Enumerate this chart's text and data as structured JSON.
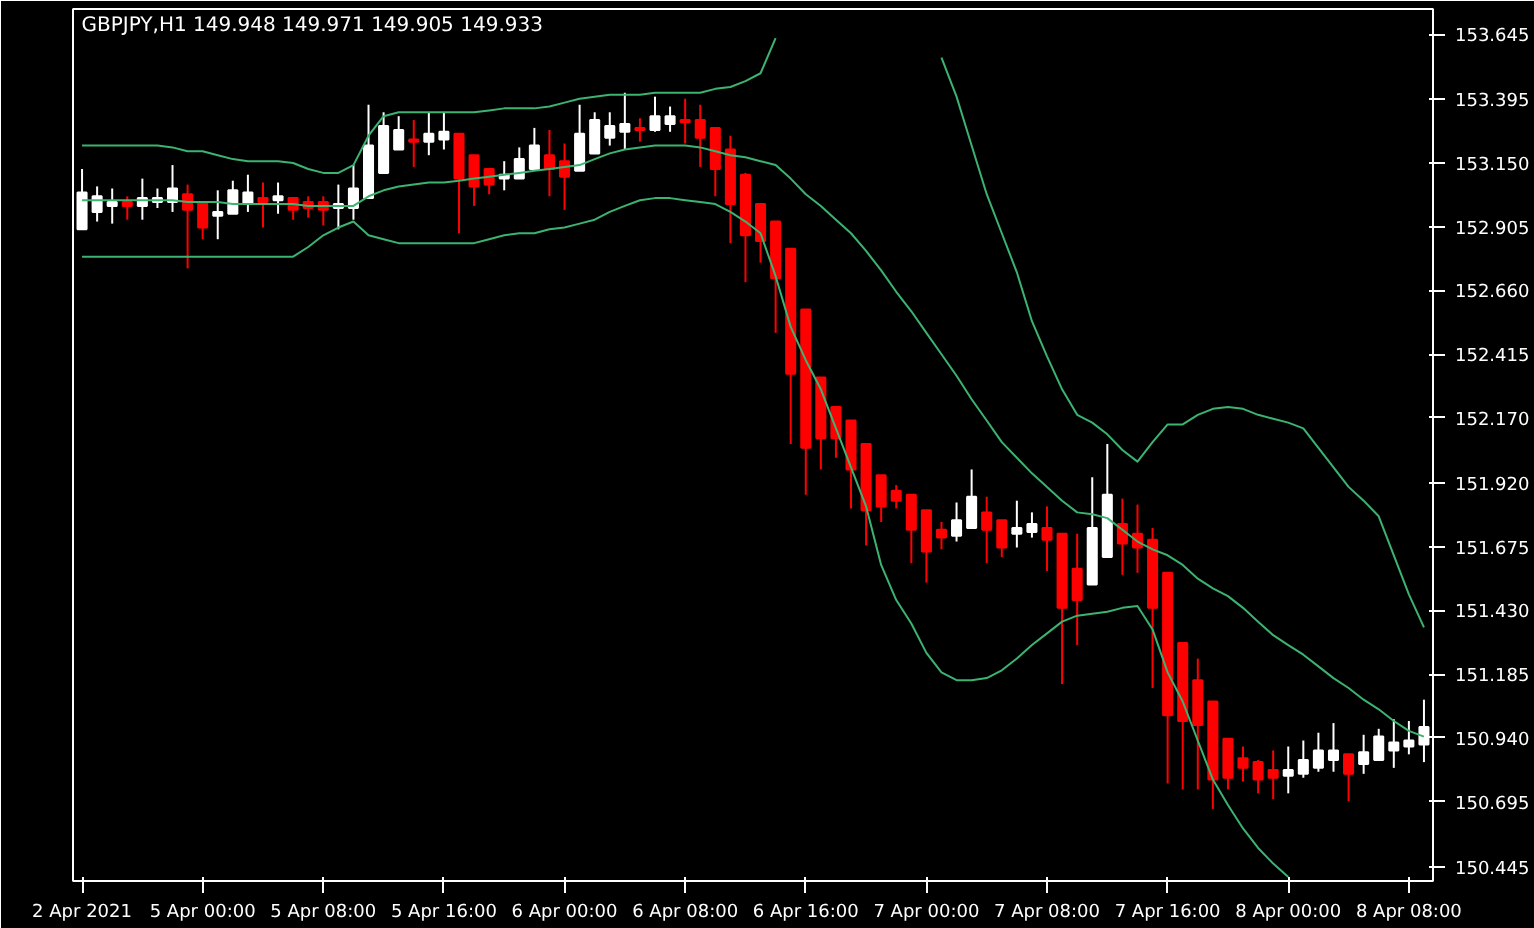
{
  "chart_data": {
    "type": "candlestick",
    "title": "GBPJPY,H1  149.948 149.971 149.905 149.933",
    "categories": [
      "2 Apr 2021",
      null,
      null,
      null,
      null,
      null,
      null,
      null,
      "5 Apr 00:00",
      null,
      null,
      null,
      null,
      null,
      null,
      null,
      "5 Apr 08:00",
      null,
      null,
      null,
      null,
      null,
      null,
      null,
      "5 Apr 16:00",
      null,
      null,
      null,
      null,
      null,
      null,
      null,
      "6 Apr 00:00",
      null,
      null,
      null,
      null,
      null,
      null,
      null,
      "6 Apr 08:00",
      null,
      null,
      null,
      null,
      null,
      null,
      null,
      "6 Apr 16:00",
      null,
      null,
      null,
      null,
      null,
      null,
      null,
      "7 Apr 00:00",
      null,
      null,
      null,
      null,
      null,
      null,
      null,
      "7 Apr 08:00",
      null,
      null,
      null,
      null,
      null,
      null,
      null,
      "7 Apr 16:00",
      null,
      null,
      null,
      null,
      null,
      null,
      null,
      "8 Apr 00:00",
      null,
      null,
      null,
      null,
      null,
      null,
      null,
      "8 Apr 08:00",
      null
    ],
    "ohlc": [
      [
        152.895,
        153.127,
        152.895,
        153.037
      ],
      [
        152.962,
        153.06,
        152.925,
        153.022
      ],
      [
        152.985,
        153.052,
        152.917,
        153.0
      ],
      [
        153.0,
        153.022,
        152.932,
        152.985
      ],
      [
        152.985,
        153.09,
        152.932,
        153.015
      ],
      [
        153.0,
        153.052,
        152.977,
        153.015
      ],
      [
        153.0,
        153.142,
        152.962,
        153.052
      ],
      [
        153.03,
        153.067,
        152.745,
        152.97
      ],
      [
        153.0,
        153.0,
        152.857,
        152.902
      ],
      [
        152.947,
        153.045,
        152.857,
        152.962
      ],
      [
        152.955,
        153.082,
        152.955,
        153.045
      ],
      [
        152.992,
        153.105,
        152.962,
        153.037
      ],
      [
        153.015,
        153.075,
        152.902,
        153.0
      ],
      [
        153.007,
        153.075,
        152.955,
        153.022
      ],
      [
        153.015,
        153.015,
        152.932,
        152.97
      ],
      [
        153.0,
        153.022,
        152.94,
        152.977
      ],
      [
        153.0,
        153.022,
        152.91,
        152.97
      ],
      [
        152.977,
        153.067,
        152.895,
        152.992
      ],
      [
        152.977,
        153.142,
        152.932,
        153.052
      ],
      [
        153.015,
        153.374,
        153.015,
        153.217
      ],
      [
        153.112,
        153.345,
        153.112,
        153.292
      ],
      [
        153.202,
        153.33,
        153.202,
        153.277
      ],
      [
        153.24,
        153.315,
        153.135,
        153.232
      ],
      [
        153.232,
        153.345,
        153.18,
        153.262
      ],
      [
        153.24,
        153.345,
        153.202,
        153.27
      ],
      [
        153.262,
        153.262,
        152.88,
        153.09
      ],
      [
        153.18,
        153.18,
        152.985,
        153.06
      ],
      [
        153.127,
        153.127,
        153.03,
        153.067
      ],
      [
        153.09,
        153.157,
        153.045,
        153.105
      ],
      [
        153.09,
        153.21,
        153.09,
        153.165
      ],
      [
        153.127,
        153.285,
        153.127,
        153.217
      ],
      [
        153.18,
        153.277,
        153.022,
        153.127
      ],
      [
        153.157,
        153.225,
        152.97,
        153.097
      ],
      [
        153.12,
        153.374,
        153.12,
        153.262
      ],
      [
        153.187,
        153.345,
        153.187,
        153.315
      ],
      [
        153.247,
        153.345,
        153.217,
        153.292
      ],
      [
        153.27,
        153.42,
        153.202,
        153.3
      ],
      [
        153.285,
        153.322,
        153.232,
        153.277
      ],
      [
        153.277,
        153.405,
        153.27,
        153.33
      ],
      [
        153.3,
        153.367,
        153.27,
        153.33
      ],
      [
        153.315,
        153.397,
        153.225,
        153.307
      ],
      [
        153.315,
        153.374,
        153.135,
        153.247
      ],
      [
        153.285,
        153.285,
        153.022,
        153.127
      ],
      [
        153.202,
        153.255,
        152.842,
        152.992
      ],
      [
        153.105,
        153.112,
        152.692,
        152.872
      ],
      [
        152.992,
        152.992,
        152.767,
        152.85
      ],
      [
        152.925,
        152.925,
        152.497,
        152.707
      ],
      [
        152.82,
        152.82,
        152.07,
        152.34
      ],
      [
        152.587,
        152.587,
        151.875,
        152.055
      ],
      [
        152.325,
        152.325,
        151.972,
        152.092
      ],
      [
        152.212,
        152.212,
        152.017,
        152.092
      ],
      [
        152.16,
        152.16,
        151.822,
        151.972
      ],
      [
        152.07,
        152.07,
        151.68,
        151.815
      ],
      [
        151.95,
        151.95,
        151.77,
        151.83
      ],
      [
        151.89,
        151.912,
        151.822,
        151.852
      ],
      [
        151.875,
        151.875,
        151.612,
        151.74
      ],
      [
        151.815,
        151.815,
        151.537,
        151.657
      ],
      [
        151.74,
        151.77,
        151.665,
        151.71
      ],
      [
        151.717,
        151.845,
        151.695,
        151.777
      ],
      [
        151.747,
        151.972,
        151.747,
        151.867
      ],
      [
        151.807,
        151.867,
        151.612,
        151.74
      ],
      [
        151.777,
        151.777,
        151.635,
        151.672
      ],
      [
        151.725,
        151.852,
        151.672,
        151.747
      ],
      [
        151.732,
        151.807,
        151.71,
        151.762
      ],
      [
        151.747,
        151.83,
        151.582,
        151.702
      ],
      [
        151.725,
        151.725,
        151.147,
        151.44
      ],
      [
        151.59,
        151.725,
        151.297,
        151.47
      ],
      [
        151.53,
        151.942,
        151.53,
        151.747
      ],
      [
        151.635,
        152.07,
        151.635,
        151.875
      ],
      [
        151.762,
        151.86,
        151.567,
        151.687
      ],
      [
        151.725,
        151.837,
        151.575,
        151.672
      ],
      [
        151.702,
        151.747,
        151.132,
        151.44
      ],
      [
        151.575,
        151.575,
        150.765,
        151.027
      ],
      [
        151.305,
        151.305,
        150.742,
        151.005
      ],
      [
        151.162,
        151.245,
        150.742,
        150.99
      ],
      [
        151.08,
        151.08,
        150.667,
        150.78
      ],
      [
        150.937,
        150.937,
        150.742,
        150.787
      ],
      [
        150.862,
        150.907,
        150.772,
        150.825
      ],
      [
        150.847,
        150.855,
        150.727,
        150.78
      ],
      [
        150.817,
        150.892,
        150.705,
        150.787
      ],
      [
        150.795,
        150.907,
        150.727,
        150.817
      ],
      [
        150.802,
        150.93,
        150.787,
        150.855
      ],
      [
        150.825,
        150.96,
        150.81,
        150.892
      ],
      [
        150.855,
        150.997,
        150.81,
        150.892
      ],
      [
        150.877,
        150.877,
        150.697,
        150.802
      ],
      [
        150.84,
        150.952,
        150.802,
        150.885
      ],
      [
        150.855,
        150.975,
        150.855,
        150.945
      ],
      [
        150.892,
        151.012,
        150.825,
        150.922
      ],
      [
        150.907,
        151.005,
        150.877,
        150.93
      ],
      [
        150.915,
        151.087,
        150.847,
        150.982
      ]
    ],
    "colors": [
      "#ffffff",
      "#ffffff",
      "#ffffff",
      "#ff0000",
      "#ffffff",
      "#ffffff",
      "#ffffff",
      "#ff0000",
      "#ff0000",
      "#ffffff",
      "#ffffff",
      "#ffffff",
      "#ff0000",
      "#ffffff",
      "#ff0000",
      "#ff0000",
      "#ff0000",
      "#ffffff",
      "#ffffff",
      "#ffffff",
      "#ffffff",
      "#ffffff",
      "#ff0000",
      "#ffffff",
      "#ffffff",
      "#ff0000",
      "#ff0000",
      "#ff0000",
      "#ffffff",
      "#ffffff",
      "#ffffff",
      "#ff0000",
      "#ff0000",
      "#ffffff",
      "#ffffff",
      "#ffffff",
      "#ffffff",
      "#ff0000",
      "#ffffff",
      "#ffffff",
      "#ff0000",
      "#ff0000",
      "#ff0000",
      "#ff0000",
      "#ff0000",
      "#ff0000",
      "#ff0000",
      "#ff0000",
      "#ff0000",
      "#ff0000",
      "#ff0000",
      "#ff0000",
      "#ff0000",
      "#ff0000",
      "#ff0000",
      "#ff0000",
      "#ff0000",
      "#ff0000",
      "#ffffff",
      "#ffffff",
      "#ff0000",
      "#ff0000",
      "#ffffff",
      "#ffffff",
      "#ff0000",
      "#ff0000",
      "#ff0000",
      "#ffffff",
      "#ffffff",
      "#ff0000",
      "#ff0000",
      "#ff0000",
      "#ff0000",
      "#ff0000",
      "#ff0000",
      "#ff0000",
      "#ff0000",
      "#ff0000",
      "#ff0000",
      "#ff0000",
      "#ffffff",
      "#ffffff",
      "#ffffff",
      "#ffffff",
      "#ff0000",
      "#ffffff",
      "#ffffff",
      "#ffffff",
      "#ffffff",
      "#ffffff"
    ],
    "series": [
      {
        "type": "line",
        "color": "#3cb371",
        "values": [
          153.217,
          153.217,
          153.217,
          153.217,
          153.217,
          153.217,
          153.21,
          153.195,
          153.195,
          153.18,
          153.165,
          153.157,
          153.157,
          153.157,
          153.15,
          153.127,
          153.112,
          153.112,
          153.142,
          153.255,
          153.33,
          153.345,
          153.345,
          153.345,
          153.345,
          153.345,
          153.345,
          153.352,
          153.36,
          153.36,
          153.36,
          153.367,
          153.382,
          153.397,
          153.405,
          153.412,
          153.412,
          153.412,
          153.42,
          153.42,
          153.42,
          153.42,
          153.435,
          153.442,
          153.465,
          153.495,
          153.63,
          null,
          null,
          null,
          null,
          null,
          null,
          null,
          null,
          null,
          null,
          153.555,
          153.405,
          153.217,
          153.03,
          152.88,
          152.73,
          152.542,
          152.407,
          152.28,
          152.182,
          152.152,
          152.107,
          152.047,
          152.002,
          152.077,
          152.145,
          152.145,
          152.182,
          152.205,
          152.212,
          152.205,
          152.182,
          152.167,
          152.152,
          152.13,
          152.055,
          151.98,
          151.905,
          151.852,
          151.792,
          151.642,
          151.492,
          151.365
        ]
      },
      {
        "type": "line",
        "color": "#3cb371",
        "values": [
          153.007,
          153.007,
          153.007,
          153.007,
          153.007,
          153.007,
          153.007,
          153.0,
          153.0,
          153.0,
          152.992,
          152.992,
          152.992,
          152.992,
          152.992,
          152.985,
          152.985,
          152.985,
          152.985,
          153.022,
          153.045,
          153.06,
          153.067,
          153.075,
          153.075,
          153.082,
          153.09,
          153.097,
          153.105,
          153.112,
          153.12,
          153.127,
          153.135,
          153.142,
          153.165,
          153.187,
          153.202,
          153.21,
          153.217,
          153.217,
          153.217,
          153.21,
          153.195,
          153.18,
          153.172,
          153.157,
          153.142,
          153.09,
          153.03,
          152.985,
          152.932,
          152.88,
          152.812,
          152.737,
          152.655,
          152.58,
          152.497,
          152.415,
          152.332,
          152.242,
          152.16,
          152.077,
          152.017,
          151.957,
          151.905,
          151.852,
          151.807,
          151.8,
          151.785,
          151.74,
          151.695,
          151.665,
          151.642,
          151.605,
          151.552,
          151.515,
          151.485,
          151.44,
          151.387,
          151.335,
          151.297,
          151.26,
          151.215,
          151.17,
          151.132,
          151.087,
          151.05,
          151.005,
          150.967,
          150.945
        ]
      },
      {
        "type": "line",
        "color": "#3cb371",
        "values": [
          152.79,
          152.79,
          152.79,
          152.79,
          152.79,
          152.79,
          152.79,
          152.79,
          152.79,
          152.79,
          152.79,
          152.79,
          152.79,
          152.79,
          152.79,
          152.827,
          152.872,
          152.902,
          152.925,
          152.872,
          152.857,
          152.842,
          152.842,
          152.842,
          152.842,
          152.842,
          152.842,
          152.857,
          152.872,
          152.88,
          152.88,
          152.895,
          152.902,
          152.917,
          152.932,
          152.962,
          152.985,
          153.007,
          153.015,
          153.015,
          153.007,
          153.0,
          152.992,
          152.962,
          152.925,
          152.88,
          152.715,
          152.52,
          152.392,
          152.28,
          152.13,
          151.98,
          151.83,
          151.605,
          151.47,
          151.38,
          151.267,
          151.192,
          151.162,
          151.162,
          151.17,
          151.2,
          151.245,
          151.297,
          151.342,
          151.387,
          151.41,
          151.417,
          151.425,
          151.44,
          151.447,
          151.357,
          151.192,
          151.08,
          150.93,
          150.78,
          150.682,
          150.592,
          150.517,
          150.457,
          150.405,
          null,
          null,
          null,
          null,
          null,
          null,
          null,
          null,
          null
        ]
      }
    ],
    "ylim": [
      150.39,
      153.742
    ],
    "yticks": [
      {
        "value": 150.445,
        "label": "150.445"
      },
      {
        "value": 150.695,
        "label": "150.695"
      },
      {
        "value": 150.94,
        "label": "150.940"
      },
      {
        "value": 151.185,
        "label": "151.185"
      },
      {
        "value": 151.43,
        "label": "151.430"
      },
      {
        "value": 151.675,
        "label": "151.675"
      },
      {
        "value": 151.92,
        "label": "151.920"
      },
      {
        "value": 152.17,
        "label": "152.170"
      },
      {
        "value": 152.415,
        "label": "152.415"
      },
      {
        "value": 152.66,
        "label": "152.660"
      },
      {
        "value": 152.905,
        "label": "152.905"
      },
      {
        "value": 153.15,
        "label": "153.150"
      },
      {
        "value": 153.395,
        "label": "153.395"
      },
      {
        "value": 153.645,
        "label": "153.645"
      }
    ],
    "grid": false
  }
}
